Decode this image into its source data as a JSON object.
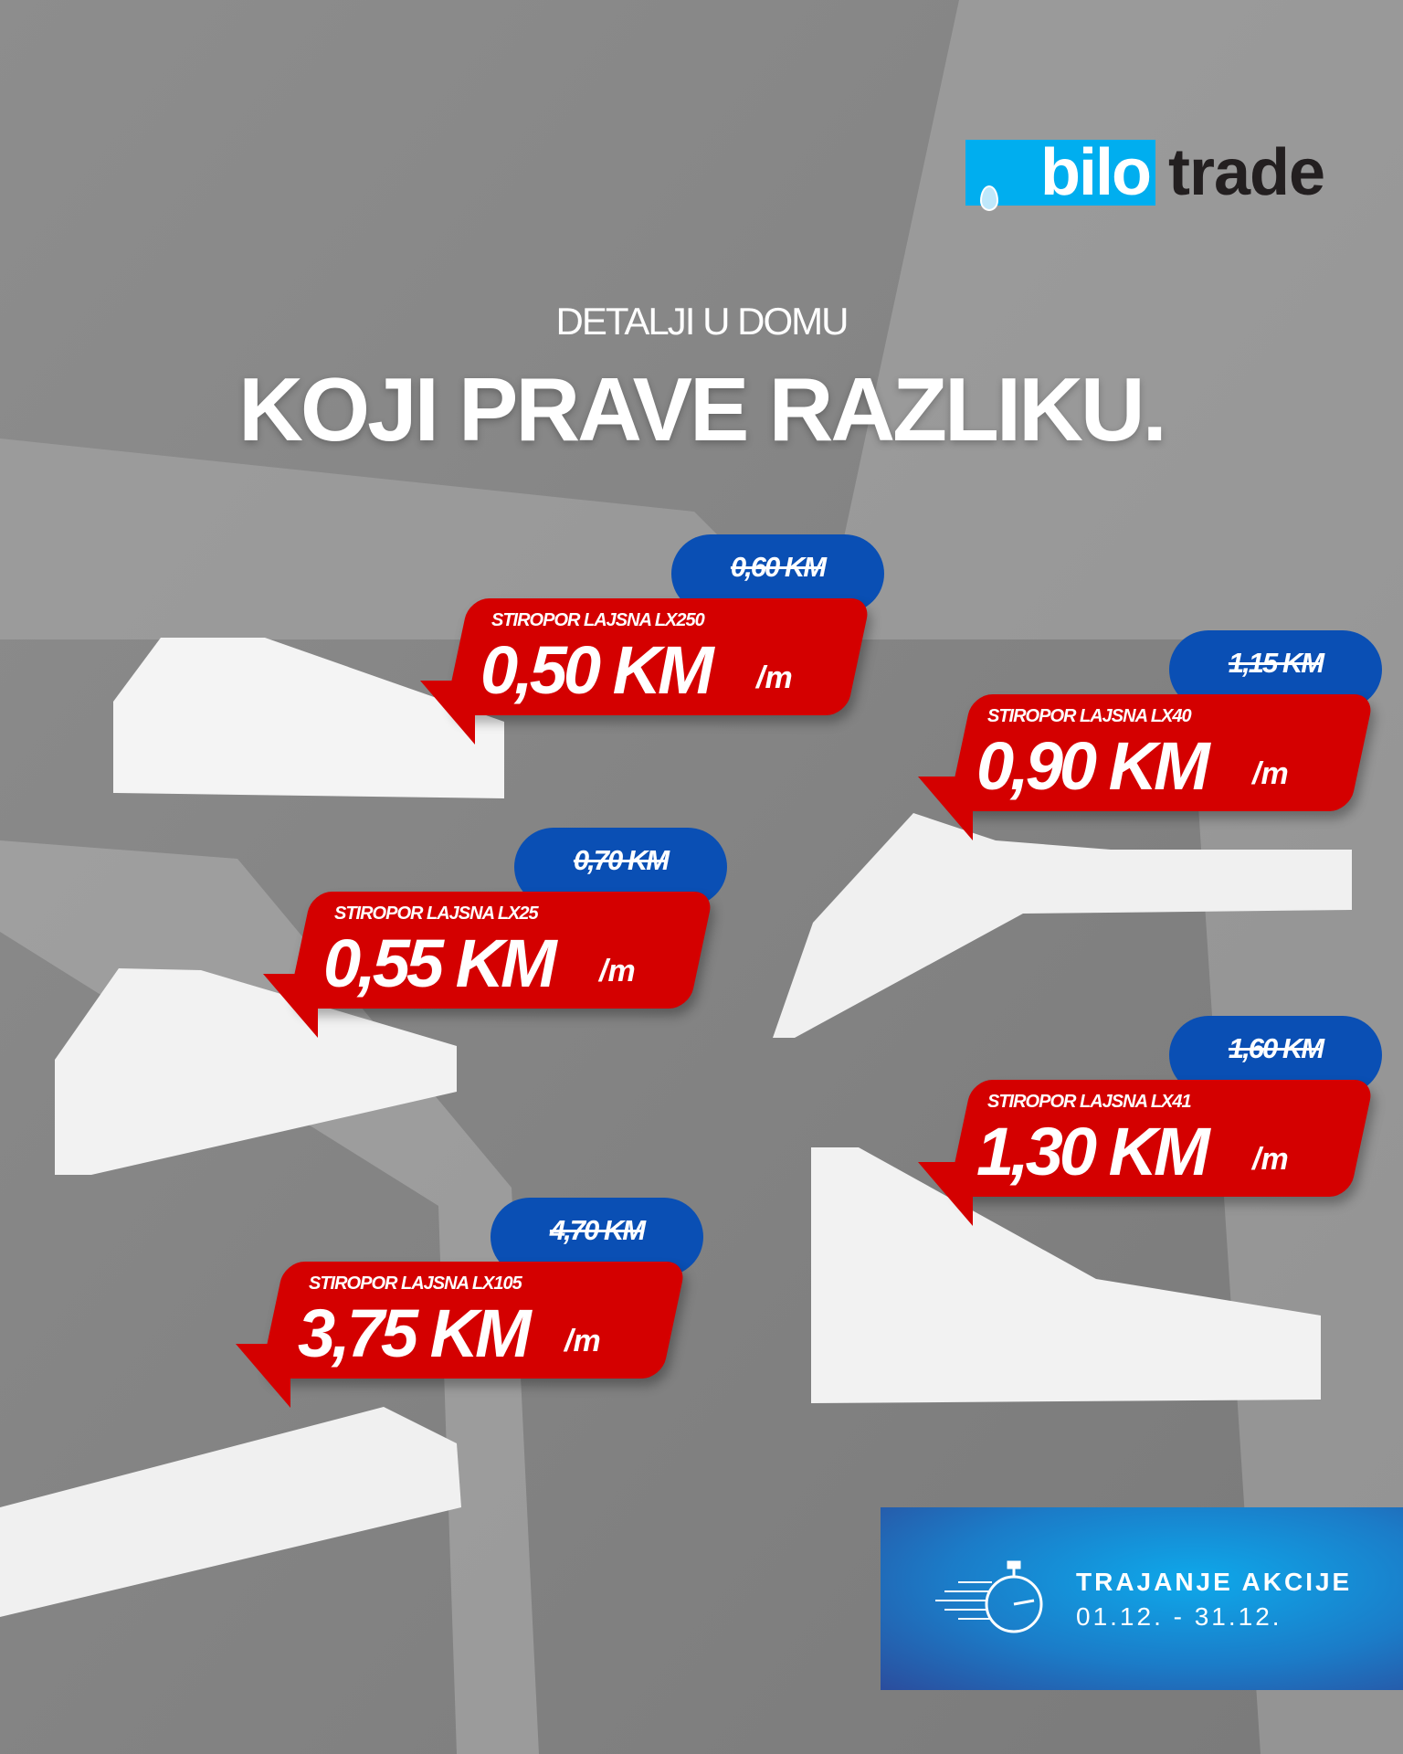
{
  "brand": {
    "logo_text_1": "bilo",
    "logo_text_2": "trade",
    "accent": "#00aeef"
  },
  "headline": {
    "subtitle": "DETALJI U DOMU",
    "title": "KOJI PRAVE RAZLIKU."
  },
  "products": [
    {
      "name": "STIROPOR LAJSNA LX250",
      "price": "0,50 KM",
      "unit": "/m",
      "old_price": "0,60 KM"
    },
    {
      "name": "STIROPOR LAJSNA LX40",
      "price": "0,90 KM",
      "unit": "/m",
      "old_price": "1,15 KM"
    },
    {
      "name": "STIROPOR LAJSNA LX25",
      "price": "0,55 KM",
      "unit": "/m",
      "old_price": "0,70 KM"
    },
    {
      "name": "STIROPOR LAJSNA LX41",
      "price": "1,30 KM",
      "unit": "/m",
      "old_price": "1,60 KM"
    },
    {
      "name": "STIROPOR LAJSNA LX105",
      "price": "3,75 KM",
      "unit": "/m",
      "old_price": "4,70 KM"
    }
  ],
  "promo": {
    "label": "TRAJANJE AKCIJE",
    "dates": "01.12. - 31.12.",
    "icon": "stopwatch-icon"
  },
  "colors": {
    "price_red": "#d40000",
    "old_price_blue": "#0a4fb4"
  }
}
